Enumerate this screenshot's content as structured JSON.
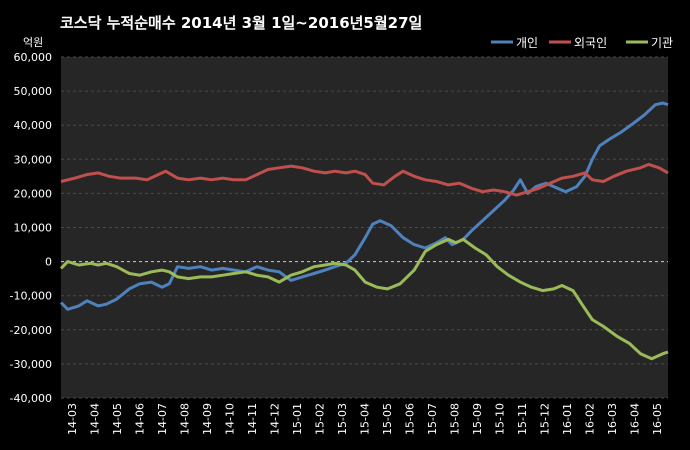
{
  "chart_data": {
    "type": "line",
    "title": "코스닥  누적순매수 2014년 3월 1일~2016년5월27일",
    "ylabel": "억원",
    "ylim": [
      -40000,
      60000
    ],
    "yticks": [
      "60,000",
      "50,000",
      "40,000",
      "30,000",
      "20,000",
      "10,000",
      "0",
      "-10,000",
      "-20,000",
      "-30,000",
      "-40,000"
    ],
    "ytick_values": [
      60000,
      50000,
      40000,
      30000,
      20000,
      10000,
      0,
      -10000,
      -20000,
      -30000,
      -40000
    ],
    "x_ticks": [
      "14-03",
      "14-04",
      "14-05",
      "14-06",
      "14-07",
      "14-08",
      "14-09",
      "14-10",
      "14-11",
      "14-12",
      "15-01",
      "15-02",
      "15-03",
      "15-04",
      "15-05",
      "15-06",
      "15-07",
      "15-08",
      "15-09",
      "15-10",
      "15-11",
      "15-12",
      "16-01",
      "16-02",
      "16-03",
      "16-04",
      "16-05"
    ],
    "x_range": [
      "2014-03-01",
      "2016-05-27"
    ],
    "legend_position": "top-right",
    "grid": true,
    "series": [
      {
        "name": "개인",
        "color": "#4f81bd",
        "points": [
          [
            "2014-03-01",
            -12000
          ],
          [
            "2014-03-10",
            -14000
          ],
          [
            "2014-03-25",
            -13000
          ],
          [
            "2014-04-05",
            -11500
          ],
          [
            "2014-04-20",
            -13000
          ],
          [
            "2014-05-01",
            -12500
          ],
          [
            "2014-05-15",
            -11000
          ],
          [
            "2014-06-01",
            -8000
          ],
          [
            "2014-06-15",
            -6500
          ],
          [
            "2014-07-01",
            -6000
          ],
          [
            "2014-07-15",
            -7500
          ],
          [
            "2014-07-25",
            -6500
          ],
          [
            "2014-08-05",
            -1500
          ],
          [
            "2014-08-20",
            -2000
          ],
          [
            "2014-09-05",
            -1500
          ],
          [
            "2014-09-20",
            -2500
          ],
          [
            "2014-10-05",
            -2000
          ],
          [
            "2014-10-20",
            -2500
          ],
          [
            "2014-11-05",
            -3000
          ],
          [
            "2014-11-20",
            -1500
          ],
          [
            "2014-12-05",
            -2500
          ],
          [
            "2014-12-20",
            -3000
          ],
          [
            "2015-01-05",
            -5500
          ],
          [
            "2015-01-20",
            -4500
          ],
          [
            "2015-02-05",
            -3500
          ],
          [
            "2015-02-20",
            -2500
          ],
          [
            "2015-03-05",
            -1500
          ],
          [
            "2015-03-20",
            -500
          ],
          [
            "2015-04-01",
            2000
          ],
          [
            "2015-04-15",
            7000
          ],
          [
            "2015-04-25",
            11000
          ],
          [
            "2015-05-05",
            12000
          ],
          [
            "2015-05-20",
            10500
          ],
          [
            "2015-06-05",
            7000
          ],
          [
            "2015-06-20",
            5000
          ],
          [
            "2015-07-05",
            4000
          ],
          [
            "2015-07-20",
            5500
          ],
          [
            "2015-08-01",
            7000
          ],
          [
            "2015-08-10",
            5000
          ],
          [
            "2015-08-25",
            6500
          ],
          [
            "2015-09-05",
            9000
          ],
          [
            "2015-09-20",
            12000
          ],
          [
            "2015-10-05",
            15000
          ],
          [
            "2015-10-20",
            18000
          ],
          [
            "2015-11-01",
            21000
          ],
          [
            "2015-11-10",
            24000
          ],
          [
            "2015-11-20",
            20000
          ],
          [
            "2015-12-01",
            22000
          ],
          [
            "2015-12-15",
            23000
          ],
          [
            "2015-12-25",
            22000
          ],
          [
            "2016-01-10",
            20500
          ],
          [
            "2016-01-25",
            22000
          ],
          [
            "2016-02-05",
            25000
          ],
          [
            "2016-02-15",
            30000
          ],
          [
            "2016-02-25",
            34000
          ],
          [
            "2016-03-10",
            36000
          ],
          [
            "2016-03-25",
            38000
          ],
          [
            "2016-04-10",
            40500
          ],
          [
            "2016-04-25",
            43000
          ],
          [
            "2016-05-10",
            46000
          ],
          [
            "2016-05-20",
            46500
          ],
          [
            "2016-05-27",
            46000
          ]
        ]
      },
      {
        "name": "외국인",
        "color": "#c0504d",
        "points": [
          [
            "2014-03-01",
            23500
          ],
          [
            "2014-03-20",
            24500
          ],
          [
            "2014-04-05",
            25500
          ],
          [
            "2014-04-20",
            26000
          ],
          [
            "2014-05-05",
            25000
          ],
          [
            "2014-05-20",
            24500
          ],
          [
            "2014-06-10",
            24500
          ],
          [
            "2014-06-25",
            24000
          ],
          [
            "2014-07-10",
            25500
          ],
          [
            "2014-07-20",
            26500
          ],
          [
            "2014-08-05",
            24500
          ],
          [
            "2014-08-20",
            24000
          ],
          [
            "2014-09-05",
            24500
          ],
          [
            "2014-09-20",
            24000
          ],
          [
            "2014-10-05",
            24500
          ],
          [
            "2014-10-20",
            24000
          ],
          [
            "2014-11-05",
            24000
          ],
          [
            "2014-11-20",
            25500
          ],
          [
            "2014-12-05",
            27000
          ],
          [
            "2014-12-20",
            27500
          ],
          [
            "2015-01-05",
            28000
          ],
          [
            "2015-01-20",
            27500
          ],
          [
            "2015-02-05",
            26500
          ],
          [
            "2015-02-20",
            26000
          ],
          [
            "2015-03-05",
            26500
          ],
          [
            "2015-03-20",
            26000
          ],
          [
            "2015-04-01",
            26500
          ],
          [
            "2015-04-15",
            25500
          ],
          [
            "2015-04-25",
            23000
          ],
          [
            "2015-05-10",
            22500
          ],
          [
            "2015-05-25",
            25000
          ],
          [
            "2015-06-05",
            26500
          ],
          [
            "2015-06-20",
            25000
          ],
          [
            "2015-07-05",
            24000
          ],
          [
            "2015-07-20",
            23500
          ],
          [
            "2015-08-05",
            22500
          ],
          [
            "2015-08-20",
            23000
          ],
          [
            "2015-09-05",
            21500
          ],
          [
            "2015-09-20",
            20500
          ],
          [
            "2015-10-05",
            21000
          ],
          [
            "2015-10-20",
            20500
          ],
          [
            "2015-11-05",
            19500
          ],
          [
            "2015-11-20",
            20500
          ],
          [
            "2015-12-05",
            21500
          ],
          [
            "2015-12-20",
            23000
          ],
          [
            "2016-01-05",
            24500
          ],
          [
            "2016-01-20",
            25000
          ],
          [
            "2016-02-05",
            26000
          ],
          [
            "2016-02-15",
            24000
          ],
          [
            "2016-03-01",
            23500
          ],
          [
            "2016-03-15",
            25000
          ],
          [
            "2016-04-01",
            26500
          ],
          [
            "2016-04-20",
            27500
          ],
          [
            "2016-05-01",
            28500
          ],
          [
            "2016-05-15",
            27500
          ],
          [
            "2016-05-27",
            26000
          ]
        ]
      },
      {
        "name": "기관",
        "color": "#9bbb59",
        "points": [
          [
            "2014-03-01",
            -2000
          ],
          [
            "2014-03-10",
            0
          ],
          [
            "2014-03-25",
            -1000
          ],
          [
            "2014-04-10",
            -500
          ],
          [
            "2014-04-20",
            -1000
          ],
          [
            "2014-05-01",
            -500
          ],
          [
            "2014-05-15",
            -1500
          ],
          [
            "2014-06-01",
            -3500
          ],
          [
            "2014-06-15",
            -4000
          ],
          [
            "2014-07-01",
            -3000
          ],
          [
            "2014-07-15",
            -2500
          ],
          [
            "2014-07-25",
            -3000
          ],
          [
            "2014-08-05",
            -4500
          ],
          [
            "2014-08-20",
            -5000
          ],
          [
            "2014-09-05",
            -4500
          ],
          [
            "2014-09-20",
            -4500
          ],
          [
            "2014-10-05",
            -4000
          ],
          [
            "2014-10-20",
            -3500
          ],
          [
            "2014-11-05",
            -3000
          ],
          [
            "2014-11-20",
            -4000
          ],
          [
            "2014-12-05",
            -4500
          ],
          [
            "2014-12-20",
            -6000
          ],
          [
            "2015-01-05",
            -4000
          ],
          [
            "2015-01-20",
            -3000
          ],
          [
            "2015-02-05",
            -1500
          ],
          [
            "2015-02-20",
            -1000
          ],
          [
            "2015-03-05",
            -500
          ],
          [
            "2015-03-20",
            -1000
          ],
          [
            "2015-04-01",
            -2500
          ],
          [
            "2015-04-15",
            -6000
          ],
          [
            "2015-05-01",
            -7500
          ],
          [
            "2015-05-15",
            -8000
          ],
          [
            "2015-06-01",
            -6500
          ],
          [
            "2015-06-20",
            -2500
          ],
          [
            "2015-07-05",
            3000
          ],
          [
            "2015-07-20",
            5000
          ],
          [
            "2015-08-05",
            6500
          ],
          [
            "2015-08-15",
            5500
          ],
          [
            "2015-08-25",
            6500
          ],
          [
            "2015-09-10",
            4000
          ],
          [
            "2015-09-25",
            2000
          ],
          [
            "2015-10-10",
            -1500
          ],
          [
            "2015-10-25",
            -4000
          ],
          [
            "2015-11-10",
            -6000
          ],
          [
            "2015-11-25",
            -7500
          ],
          [
            "2015-12-10",
            -8500
          ],
          [
            "2015-12-25",
            -8000
          ],
          [
            "2016-01-05",
            -7000
          ],
          [
            "2016-01-20",
            -8500
          ],
          [
            "2016-02-01",
            -12500
          ],
          [
            "2016-02-15",
            -17000
          ],
          [
            "2016-03-01",
            -19000
          ],
          [
            "2016-03-20",
            -22000
          ],
          [
            "2016-04-05",
            -24000
          ],
          [
            "2016-04-20",
            -27000
          ],
          [
            "2016-05-05",
            -28500
          ],
          [
            "2016-05-20",
            -27000
          ],
          [
            "2016-05-27",
            -26500
          ]
        ]
      }
    ]
  }
}
